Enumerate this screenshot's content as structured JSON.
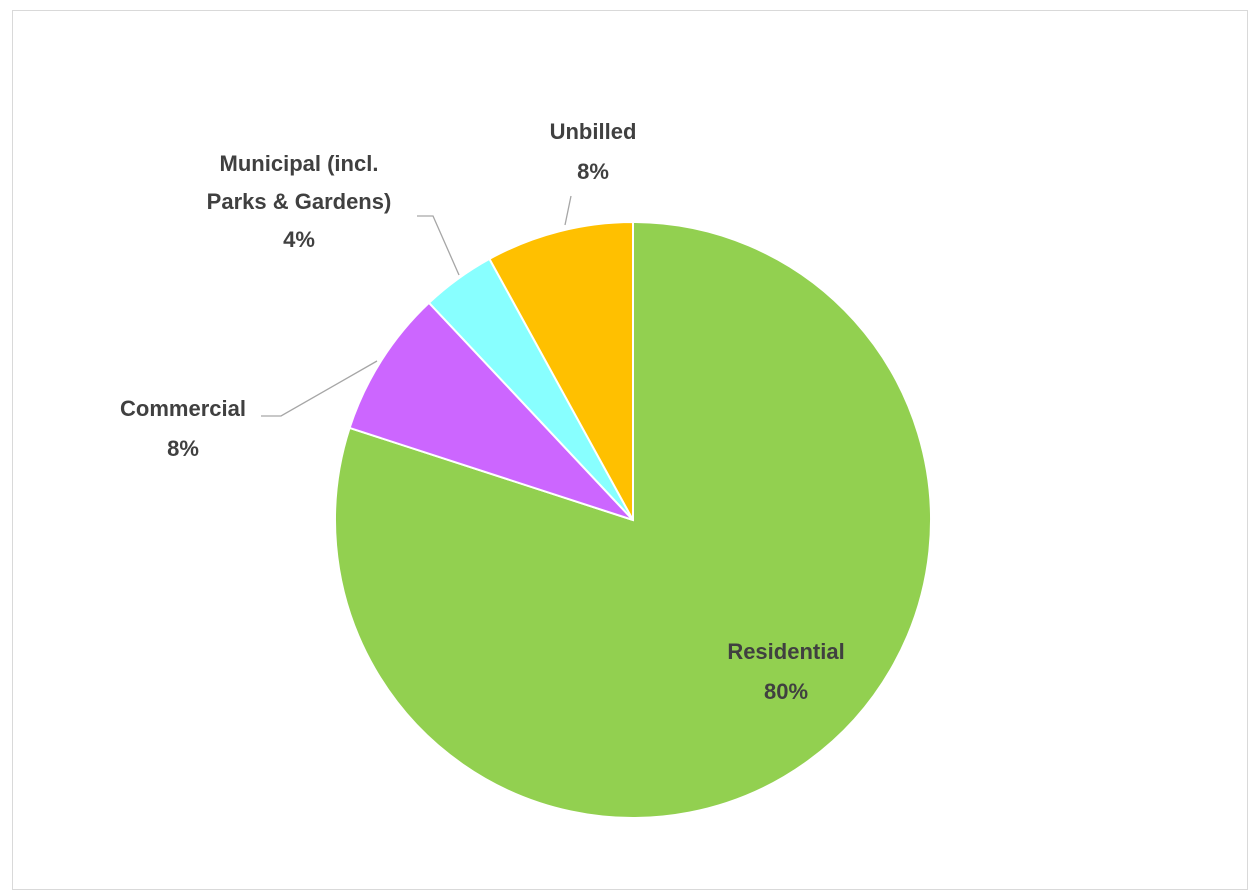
{
  "chart_data": {
    "type": "pie",
    "title": "",
    "start_angle_deg": 0,
    "direction": "clockwise",
    "categories": [
      "Residential",
      "Commercial",
      "Municipal (incl. Parks & Gardens)",
      "Unbilled"
    ],
    "values": [
      80,
      8,
      4,
      8
    ],
    "labels": [
      {
        "lines": [
          "Residential",
          "80%"
        ],
        "position": "inside"
      },
      {
        "lines": [
          "Commercial",
          "8%"
        ],
        "position": "outside"
      },
      {
        "lines": [
          "Municipal (incl.",
          "Parks & Gardens)",
          "4%"
        ],
        "position": "outside"
      },
      {
        "lines": [
          "Unbilled",
          "8%"
        ],
        "position": "outside"
      }
    ],
    "colors": [
      "#92d050",
      "#cc66ff",
      "#88ffff",
      "#ffc000"
    ],
    "label_color": "#404040",
    "legend": "none"
  }
}
